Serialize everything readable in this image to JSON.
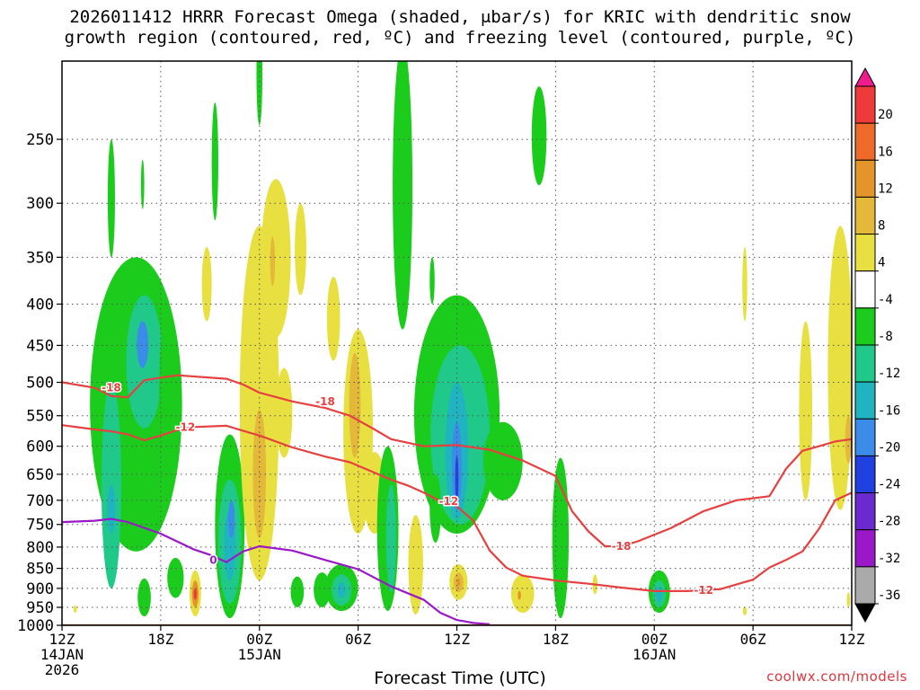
{
  "title_line1": "2026011412 HRRR Forecast Omega (shaded, μbar/s) for KRIC with dendritic snow",
  "title_line2": "growth region (contoured, red, ºC) and freezing level (contoured, purple, ºC)",
  "credit": "coolwx.com/models",
  "chart_data": {
    "type": "heatmap",
    "title": "2026011412 HRRR Forecast Omega (shaded, μbar/s) for KRIC with dendritic snow growth region (contoured, red, ºC) and freezing level (contoured, purple, ºC)",
    "xlabel": "Forecast Time (UTC)",
    "ylabel": "",
    "x_range_hours": [
      0,
      48
    ],
    "y_axis": {
      "quantity": "pressure (hPa)",
      "scale": "log",
      "inverted": true,
      "range": [
        1000,
        200
      ],
      "tick_labels": [
        "250",
        "300",
        "350",
        "400",
        "450",
        "500",
        "550",
        "600",
        "650",
        "700",
        "750",
        "800",
        "850",
        "900",
        "950",
        "1000"
      ]
    },
    "x_ticks": [
      {
        "hour": 0,
        "labels": [
          "12Z",
          "14JAN",
          "2026"
        ]
      },
      {
        "hour": 6,
        "labels": [
          "18Z"
        ]
      },
      {
        "hour": 12,
        "labels": [
          "00Z",
          "15JAN"
        ]
      },
      {
        "hour": 18,
        "labels": [
          "06Z"
        ]
      },
      {
        "hour": 24,
        "labels": [
          "12Z"
        ]
      },
      {
        "hour": 30,
        "labels": [
          "18Z"
        ]
      },
      {
        "hour": 36,
        "labels": [
          "00Z",
          "16JAN"
        ]
      },
      {
        "hour": 42,
        "labels": [
          "06Z"
        ]
      },
      {
        "hour": 48,
        "labels": [
          "12Z"
        ]
      }
    ],
    "grid": true,
    "colorbar": {
      "placement": "right",
      "tick_labels": [
        "20",
        "16",
        "12",
        "8",
        "4",
        "-4",
        "-8",
        "-12",
        "-16",
        "-20",
        "-24",
        "-28",
        "-32",
        "-36"
      ],
      "colors": [
        "#ee1c8c",
        "#ee3a3a",
        "#ee6a2a",
        "#e4952a",
        "#e4b838",
        "#e8e040",
        "#ffffff",
        "#1ccc1c",
        "#20c88a",
        "#20b4c0",
        "#3a8ce8",
        "#2040e0",
        "#6a2ad0",
        "#9a18c8",
        "#aaaaaa",
        "#000000"
      ]
    },
    "contours": [
      {
        "level": "-18",
        "color": "#e64040",
        "points": [
          [
            0,
            500
          ],
          [
            2,
            508
          ],
          [
            3,
            520
          ],
          [
            4,
            522
          ],
          [
            5,
            497
          ],
          [
            7,
            490
          ],
          [
            10,
            495
          ],
          [
            11,
            503
          ],
          [
            12,
            515
          ],
          [
            14,
            528
          ],
          [
            16,
            538
          ],
          [
            17.5,
            550
          ],
          [
            19,
            572
          ],
          [
            20,
            588
          ],
          [
            22,
            600
          ],
          [
            24,
            598
          ],
          [
            26,
            606
          ],
          [
            28,
            625
          ],
          [
            30,
            653
          ],
          [
            31,
            722
          ],
          [
            32,
            765
          ],
          [
            33,
            798
          ],
          [
            34,
            798
          ],
          [
            35,
            787
          ],
          [
            37,
            758
          ],
          [
            39,
            722
          ],
          [
            41,
            700
          ],
          [
            43,
            692
          ],
          [
            44,
            640
          ],
          [
            45,
            608
          ],
          [
            46,
            600
          ],
          [
            47,
            592
          ],
          [
            48,
            588
          ]
        ],
        "labels": [
          {
            "x": 3,
            "y": 508,
            "text": "-18"
          },
          {
            "x": 16,
            "y": 528,
            "text": "-18"
          },
          {
            "x": 34,
            "y": 798,
            "text": "-18"
          }
        ]
      },
      {
        "level": "-12",
        "color": "#e64040",
        "points": [
          [
            0,
            565
          ],
          [
            2,
            572
          ],
          [
            3,
            575
          ],
          [
            4,
            580
          ],
          [
            5,
            590
          ],
          [
            6,
            582
          ],
          [
            7,
            573
          ],
          [
            8,
            568
          ],
          [
            10,
            566
          ],
          [
            11,
            574
          ],
          [
            12,
            582
          ],
          [
            14,
            602
          ],
          [
            16,
            618
          ],
          [
            17.5,
            628
          ],
          [
            19,
            647
          ],
          [
            20,
            660
          ],
          [
            21,
            671
          ],
          [
            22,
            685
          ],
          [
            23,
            702
          ],
          [
            24,
            712
          ],
          [
            25,
            742
          ],
          [
            26,
            808
          ],
          [
            27,
            848
          ],
          [
            28,
            868
          ],
          [
            30,
            880
          ],
          [
            32,
            888
          ],
          [
            34,
            898
          ],
          [
            36,
            907
          ],
          [
            38,
            907
          ],
          [
            40,
            902
          ],
          [
            42,
            878
          ],
          [
            43,
            848
          ],
          [
            44,
            830
          ],
          [
            45,
            810
          ],
          [
            46,
            760
          ],
          [
            47,
            700
          ],
          [
            48,
            685
          ]
        ],
        "labels": [
          {
            "x": 7.5,
            "y": 568,
            "text": "-12"
          },
          {
            "x": 23.5,
            "y": 702,
            "text": "-12"
          },
          {
            "x": 39,
            "y": 905,
            "text": "-12"
          }
        ]
      },
      {
        "level": "0",
        "color": "#9a18c8",
        "points": [
          [
            0,
            745
          ],
          [
            2,
            742
          ],
          [
            3,
            738
          ],
          [
            4,
            745
          ],
          [
            6,
            770
          ],
          [
            8,
            805
          ],
          [
            9,
            818
          ],
          [
            10,
            835
          ],
          [
            11,
            810
          ],
          [
            12,
            798
          ],
          [
            14,
            808
          ],
          [
            16,
            830
          ],
          [
            18,
            852
          ],
          [
            20,
            895
          ],
          [
            22,
            930
          ],
          [
            23,
            965
          ],
          [
            24,
            985
          ],
          [
            25,
            993
          ],
          [
            26,
            997
          ]
        ],
        "labels": [
          {
            "x": 9.2,
            "y": 830,
            "text": "0"
          }
        ]
      }
    ],
    "omega_regions": [
      {
        "x": 0.8,
        "p": 955,
        "rx": 0.1,
        "rp": 10,
        "color": "#e8e040"
      },
      {
        "x": 3,
        "p": 300,
        "rx": 0.22,
        "rp": 50,
        "color": "#1ccc1c"
      },
      {
        "x": 4.9,
        "p": 285,
        "rx": 0.1,
        "rp": 20,
        "color": "#1ccc1c"
      },
      {
        "x": 9.3,
        "p": 270,
        "rx": 0.2,
        "rp": 45,
        "color": "#1ccc1c"
      },
      {
        "x": 12,
        "p": 210,
        "rx": 0.18,
        "rp": 30,
        "color": "#1ccc1c"
      },
      {
        "x": 8.8,
        "p": 380,
        "rx": 0.3,
        "rp": 40,
        "color": "#e8e040"
      },
      {
        "x": 4.5,
        "p": 580,
        "rx": 2.8,
        "rp": 230,
        "color": "#1ccc1c"
      },
      {
        "x": 5,
        "p": 480,
        "rx": 1.1,
        "rp": 90,
        "color": "#20c88a"
      },
      {
        "x": 4.9,
        "p": 450,
        "rx": 0.35,
        "rp": 30,
        "color": "#3a8ce8"
      },
      {
        "x": 3,
        "p": 700,
        "rx": 0.6,
        "rp": 200,
        "color": "#20c88a"
      },
      {
        "x": 3,
        "p": 720,
        "rx": 0.25,
        "rp": 50,
        "color": "#20b4c0"
      },
      {
        "x": 6.4,
        "p": 530,
        "rx": 0.5,
        "rp": 120,
        "color": "#1ccc1c"
      },
      {
        "x": 5,
        "p": 925,
        "rx": 0.4,
        "rp": 50,
        "color": "#1ccc1c"
      },
      {
        "x": 6.9,
        "p": 875,
        "rx": 0.5,
        "rp": 50,
        "color": "#1ccc1c"
      },
      {
        "x": 8.1,
        "p": 915,
        "rx": 0.35,
        "rp": 60,
        "color": "#e8e040"
      },
      {
        "x": 8.1,
        "p": 915,
        "rx": 0.2,
        "rp": 35,
        "color": "#e4952a"
      },
      {
        "x": 8.1,
        "p": 915,
        "rx": 0.1,
        "rp": 15,
        "color": "#ee3a3a"
      },
      {
        "x": 10.2,
        "p": 780,
        "rx": 0.9,
        "rp": 200,
        "color": "#1ccc1c"
      },
      {
        "x": 10.2,
        "p": 800,
        "rx": 0.7,
        "rp": 140,
        "color": "#20c88a"
      },
      {
        "x": 10.2,
        "p": 800,
        "rx": 0.35,
        "rp": 80,
        "color": "#20b4c0"
      },
      {
        "x": 10.3,
        "p": 740,
        "rx": 0.2,
        "rp": 40,
        "color": "#3a8ce8"
      },
      {
        "x": 12,
        "p": 600,
        "rx": 1.2,
        "rp": 280,
        "color": "#e8e040"
      },
      {
        "x": 12,
        "p": 660,
        "rx": 0.4,
        "rp": 120,
        "color": "#e4b838"
      },
      {
        "x": 13,
        "p": 360,
        "rx": 0.9,
        "rp": 80,
        "color": "#e8e040"
      },
      {
        "x": 12.8,
        "p": 355,
        "rx": 0.15,
        "rp": 25,
        "color": "#e4b838"
      },
      {
        "x": 14.5,
        "p": 345,
        "rx": 0.35,
        "rp": 45,
        "color": "#e8e040"
      },
      {
        "x": 13.5,
        "p": 550,
        "rx": 0.5,
        "rp": 70,
        "color": "#e8e040"
      },
      {
        "x": 16.5,
        "p": 420,
        "rx": 0.4,
        "rp": 50,
        "color": "#e8e040"
      },
      {
        "x": 18,
        "p": 600,
        "rx": 0.9,
        "rp": 170,
        "color": "#e8e040"
      },
      {
        "x": 17.8,
        "p": 540,
        "rx": 0.35,
        "rp": 80,
        "color": "#e4b838"
      },
      {
        "x": 19,
        "p": 690,
        "rx": 0.7,
        "rp": 80,
        "color": "#e8e040"
      },
      {
        "x": 14.3,
        "p": 910,
        "rx": 0.4,
        "rp": 40,
        "color": "#1ccc1c"
      },
      {
        "x": 15.8,
        "p": 905,
        "rx": 0.5,
        "rp": 45,
        "color": "#1ccc1c"
      },
      {
        "x": 17,
        "p": 900,
        "rx": 1.0,
        "rp": 60,
        "color": "#1ccc1c"
      },
      {
        "x": 17,
        "p": 905,
        "rx": 0.6,
        "rp": 40,
        "color": "#20c88a"
      },
      {
        "x": 17,
        "p": 905,
        "rx": 0.25,
        "rp": 20,
        "color": "#20b4c0"
      },
      {
        "x": 19.8,
        "p": 780,
        "rx": 0.65,
        "rp": 180,
        "color": "#1ccc1c"
      },
      {
        "x": 20,
        "p": 790,
        "rx": 0.3,
        "rp": 120,
        "color": "#20c88a"
      },
      {
        "x": 21.5,
        "p": 850,
        "rx": 0.45,
        "rp": 120,
        "color": "#e8e040"
      },
      {
        "x": 20.7,
        "p": 310,
        "rx": 0.6,
        "rp": 120,
        "color": "#1ccc1c"
      },
      {
        "x": 22.5,
        "p": 375,
        "rx": 0.15,
        "rp": 25,
        "color": "#1ccc1c"
      },
      {
        "x": 24,
        "p": 580,
        "rx": 2.6,
        "rp": 190,
        "color": "#1ccc1c"
      },
      {
        "x": 24.2,
        "p": 600,
        "rx": 1.8,
        "rp": 150,
        "color": "#20c88a"
      },
      {
        "x": 24,
        "p": 620,
        "rx": 0.7,
        "rp": 120,
        "color": "#20b4c0"
      },
      {
        "x": 24,
        "p": 640,
        "rx": 0.3,
        "rp": 80,
        "color": "#3a8ce8"
      },
      {
        "x": 24,
        "p": 660,
        "rx": 0.1,
        "rp": 45,
        "color": "#2040e0"
      },
      {
        "x": 22.7,
        "p": 720,
        "rx": 0.35,
        "rp": 70,
        "color": "#1ccc1c"
      },
      {
        "x": 24.1,
        "p": 885,
        "rx": 0.55,
        "rp": 45,
        "color": "#e8e040"
      },
      {
        "x": 24.1,
        "p": 885,
        "rx": 0.3,
        "rp": 25,
        "color": "#e4b838"
      },
      {
        "x": 24.1,
        "p": 885,
        "rx": 0.1,
        "rp": 10,
        "color": "#e4952a"
      },
      {
        "x": 26.8,
        "p": 630,
        "rx": 1.2,
        "rp": 70,
        "color": "#1ccc1c"
      },
      {
        "x": 28,
        "p": 915,
        "rx": 0.7,
        "rp": 50,
        "color": "#e8e040"
      },
      {
        "x": 27.8,
        "p": 918,
        "rx": 0.1,
        "rp": 12,
        "color": "#e4952a"
      },
      {
        "x": 29,
        "p": 250,
        "rx": 0.45,
        "rp": 35,
        "color": "#1ccc1c"
      },
      {
        "x": 30.3,
        "p": 800,
        "rx": 0.5,
        "rp": 180,
        "color": "#1ccc1c"
      },
      {
        "x": 32.4,
        "p": 890,
        "rx": 0.15,
        "rp": 25,
        "color": "#e8e040"
      },
      {
        "x": 36.3,
        "p": 910,
        "rx": 0.65,
        "rp": 55,
        "color": "#1ccc1c"
      },
      {
        "x": 36.3,
        "p": 915,
        "rx": 0.4,
        "rp": 35,
        "color": "#20c88a"
      },
      {
        "x": 36.3,
        "p": 915,
        "rx": 0.2,
        "rp": 20,
        "color": "#20b4c0"
      },
      {
        "x": 41.5,
        "p": 380,
        "rx": 0.15,
        "rp": 40,
        "color": "#e8e040"
      },
      {
        "x": 41.5,
        "p": 960,
        "rx": 0.12,
        "rp": 12,
        "color": "#e8e040"
      },
      {
        "x": 45.2,
        "p": 560,
        "rx": 0.4,
        "rp": 140,
        "color": "#e8e040"
      },
      {
        "x": 47.3,
        "p": 520,
        "rx": 0.75,
        "rp": 200,
        "color": "#e8e040"
      },
      {
        "x": 47.8,
        "p": 590,
        "rx": 0.2,
        "rp": 40,
        "color": "#e4b838"
      },
      {
        "x": 47.8,
        "p": 930,
        "rx": 0.1,
        "rp": 20,
        "color": "#e8e040"
      }
    ],
    "terrain": {
      "color": "#a0522d",
      "top_pressure": 997
    }
  }
}
